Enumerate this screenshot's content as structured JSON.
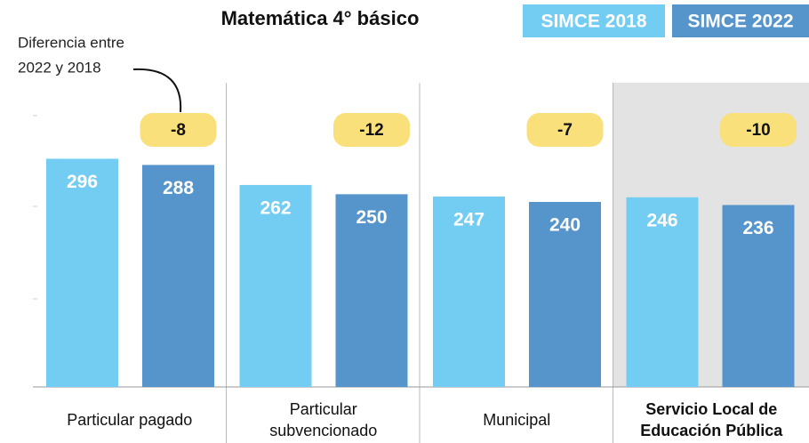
{
  "chart_data": {
    "type": "bar",
    "title": "Matemática 4° básico",
    "annotation": [
      "Diferencia entre",
      "2022 y 2018"
    ],
    "categories": [
      "Particular pagado",
      "Particular subvencionado",
      "Municipal",
      "Servicio Local de Educación Pública"
    ],
    "series": [
      {
        "name": "SIMCE 2018",
        "color": "#73cdf2",
        "values": [
          296,
          262,
          247,
          246
        ]
      },
      {
        "name": "SIMCE 2022",
        "color": "#5595cc",
        "values": [
          288,
          250,
          240,
          236
        ]
      }
    ],
    "differences": [
      -8,
      -12,
      -7,
      -10
    ],
    "difference_color": "#f9e07a",
    "highlight": 3,
    "ylim": [
      0,
      300
    ]
  }
}
